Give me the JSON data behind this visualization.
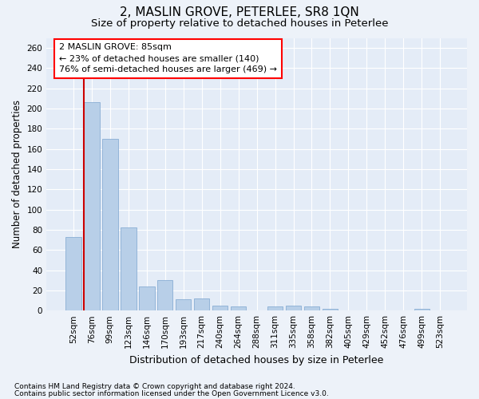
{
  "title1": "2, MASLIN GROVE, PETERLEE, SR8 1QN",
  "title2": "Size of property relative to detached houses in Peterlee",
  "xlabel": "Distribution of detached houses by size in Peterlee",
  "ylabel": "Number of detached properties",
  "categories": [
    "52sqm",
    "76sqm",
    "99sqm",
    "123sqm",
    "146sqm",
    "170sqm",
    "193sqm",
    "217sqm",
    "240sqm",
    "264sqm",
    "288sqm",
    "311sqm",
    "335sqm",
    "358sqm",
    "382sqm",
    "405sqm",
    "429sqm",
    "452sqm",
    "476sqm",
    "499sqm",
    "523sqm"
  ],
  "values": [
    73,
    206,
    170,
    82,
    24,
    30,
    11,
    12,
    5,
    4,
    0,
    4,
    5,
    4,
    2,
    0,
    0,
    0,
    0,
    2,
    0
  ],
  "bar_color": "#b8cfe8",
  "bar_edge_color": "#8aaed4",
  "highlight_idx": 1,
  "highlight_color": "#cc0000",
  "annotation_line1": "2 MASLIN GROVE: 85sqm",
  "annotation_line2": "← 23% of detached houses are smaller (140)",
  "annotation_line3": "76% of semi-detached houses are larger (469) →",
  "ylim": [
    0,
    270
  ],
  "yticks": [
    0,
    20,
    40,
    60,
    80,
    100,
    120,
    140,
    160,
    180,
    200,
    220,
    240,
    260
  ],
  "footnote1": "Contains HM Land Registry data © Crown copyright and database right 2024.",
  "footnote2": "Contains public sector information licensed under the Open Government Licence v3.0.",
  "bg_color": "#edf2f9",
  "plot_bg_color": "#e4ecf7",
  "grid_color": "#ffffff",
  "title1_fontsize": 11,
  "title2_fontsize": 9.5,
  "xlabel_fontsize": 9,
  "ylabel_fontsize": 8.5,
  "tick_fontsize": 7.5,
  "annotation_fontsize": 8,
  "footnote_fontsize": 6.5
}
